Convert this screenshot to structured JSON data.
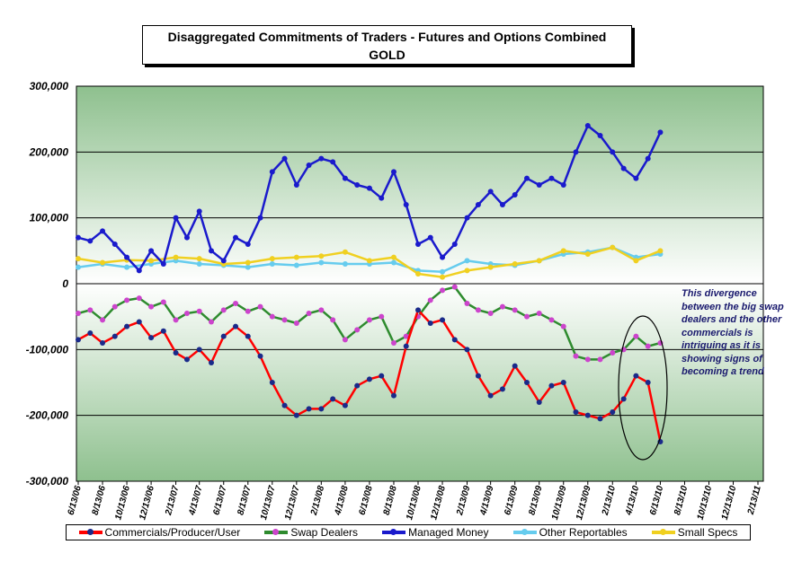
{
  "title_line1": "Disaggregated Commitments of Traders - Futures and Options Combined",
  "title_line2": "GOLD",
  "annotation": "This divergence between the big swap dealers and the other commercials is intriguing as it is showing signs of becoming a trend",
  "chart_data": {
    "type": "line",
    "ylim": [
      -300000,
      300000
    ],
    "y_ticks": [
      "300,000",
      "200,000",
      "100,000",
      "0",
      "-100,000",
      "-200,000",
      "-300,000"
    ],
    "x_tick_labels": [
      "6/13/06",
      "8/13/06",
      "10/13/06",
      "12/13/06",
      "2/13/07",
      "4/13/07",
      "6/13/07",
      "8/13/07",
      "10/13/07",
      "12/13/07",
      "2/13/08",
      "4/13/08",
      "6/13/08",
      "8/13/08",
      "10/13/08",
      "12/13/08",
      "2/13/09",
      "4/13/09",
      "6/13/09",
      "8/13/09",
      "10/13/09",
      "12/13/09",
      "2/13/10",
      "4/13/10",
      "6/13/10",
      "8/13/10",
      "10/13/10",
      "12/13/10",
      "2/13/11"
    ],
    "grid": true,
    "legend_position": "bottom",
    "colors": {
      "Commercials/Producer/User": {
        "line": "#ff0000",
        "marker": "#1a2a8a"
      },
      "Swap Dealers": {
        "line": "#2e8b2e",
        "marker": "#cc44cc"
      },
      "Managed Money": {
        "line": "#1a1acc",
        "marker": "#1a1acc"
      },
      "Other Reportables": {
        "line": "#66ccee",
        "marker": "#66ccee"
      },
      "Small Specs": {
        "line": "#f0d020",
        "marker": "#f0d020"
      }
    },
    "series": [
      {
        "name": "Commercials/Producer/User",
        "x": [
          "6/13/06",
          "7/13/06",
          "8/13/06",
          "9/13/06",
          "10/13/06",
          "11/13/06",
          "12/13/06",
          "1/13/07",
          "2/13/07",
          "3/13/07",
          "4/13/07",
          "5/13/07",
          "6/13/07",
          "7/13/07",
          "8/13/07",
          "9/13/07",
          "10/13/07",
          "11/13/07",
          "12/13/07",
          "1/13/08",
          "2/13/08",
          "3/13/08",
          "4/13/08",
          "5/13/08",
          "6/13/08",
          "7/13/08",
          "8/13/08",
          "9/13/08",
          "10/13/08",
          "11/13/08",
          "12/13/08",
          "1/13/09",
          "2/13/09",
          "3/13/09",
          "4/13/09",
          "5/13/09",
          "6/13/09",
          "7/13/09",
          "8/13/09",
          "9/13/09",
          "10/13/09",
          "11/13/09",
          "12/13/09",
          "1/13/10",
          "2/13/10",
          "3/13/10",
          "4/13/10",
          "5/13/10",
          "6/13/10"
        ],
        "y": [
          -85000,
          -75000,
          -90000,
          -80000,
          -65000,
          -58000,
          -82000,
          -72000,
          -105000,
          -115000,
          -100000,
          -120000,
          -80000,
          -65000,
          -80000,
          -110000,
          -150000,
          -185000,
          -200000,
          -190000,
          -190000,
          -175000,
          -185000,
          -155000,
          -145000,
          -140000,
          -170000,
          -95000,
          -40000,
          -60000,
          -55000,
          -85000,
          -100000,
          -140000,
          -170000,
          -160000,
          -125000,
          -150000,
          -180000,
          -155000,
          -150000,
          -195000,
          -200000,
          -205000,
          -195000,
          -175000,
          -140000,
          -150000,
          -240000
        ]
      },
      {
        "name": "Swap Dealers",
        "x": [
          "6/13/06",
          "7/13/06",
          "8/13/06",
          "9/13/06",
          "10/13/06",
          "11/13/06",
          "12/13/06",
          "1/13/07",
          "2/13/07",
          "3/13/07",
          "4/13/07",
          "5/13/07",
          "6/13/07",
          "7/13/07",
          "8/13/07",
          "9/13/07",
          "10/13/07",
          "11/13/07",
          "12/13/07",
          "1/13/08",
          "2/13/08",
          "3/13/08",
          "4/13/08",
          "5/13/08",
          "6/13/08",
          "7/13/08",
          "8/13/08",
          "9/13/08",
          "10/13/08",
          "11/13/08",
          "12/13/08",
          "1/13/09",
          "2/13/09",
          "3/13/09",
          "4/13/09",
          "5/13/09",
          "6/13/09",
          "7/13/09",
          "8/13/09",
          "9/13/09",
          "10/13/09",
          "11/13/09",
          "12/13/09",
          "1/13/10",
          "2/13/10",
          "3/13/10",
          "4/13/10",
          "5/13/10",
          "6/13/10"
        ],
        "y": [
          -45000,
          -40000,
          -55000,
          -35000,
          -25000,
          -22000,
          -35000,
          -28000,
          -55000,
          -45000,
          -42000,
          -58000,
          -40000,
          -30000,
          -42000,
          -35000,
          -50000,
          -55000,
          -60000,
          -45000,
          -40000,
          -55000,
          -85000,
          -70000,
          -55000,
          -50000,
          -90000,
          -80000,
          -50000,
          -25000,
          -10000,
          -5000,
          -30000,
          -40000,
          -45000,
          -35000,
          -40000,
          -50000,
          -45000,
          -55000,
          -65000,
          -110000,
          -115000,
          -115000,
          -105000,
          -100000,
          -80000,
          -95000,
          -90000
        ]
      },
      {
        "name": "Managed Money",
        "x": [
          "6/13/06",
          "7/13/06",
          "8/13/06",
          "9/13/06",
          "10/13/06",
          "11/13/06",
          "12/13/06",
          "1/13/07",
          "2/13/07",
          "3/13/07",
          "4/13/07",
          "5/13/07",
          "6/13/07",
          "7/13/07",
          "8/13/07",
          "9/13/07",
          "10/13/07",
          "11/13/07",
          "12/13/07",
          "1/13/08",
          "2/13/08",
          "3/13/08",
          "4/13/08",
          "5/13/08",
          "6/13/08",
          "7/13/08",
          "8/13/08",
          "9/13/08",
          "10/13/08",
          "11/13/08",
          "12/13/08",
          "1/13/09",
          "2/13/09",
          "3/13/09",
          "4/13/09",
          "5/13/09",
          "6/13/09",
          "7/13/09",
          "8/13/09",
          "9/13/09",
          "10/13/09",
          "11/13/09",
          "12/13/09",
          "1/13/10",
          "2/13/10",
          "3/13/10",
          "4/13/10",
          "5/13/10",
          "6/13/10"
        ],
        "y": [
          70000,
          65000,
          80000,
          60000,
          40000,
          20000,
          50000,
          30000,
          100000,
          70000,
          110000,
          50000,
          35000,
          70000,
          60000,
          100000,
          170000,
          190000,
          150000,
          180000,
          190000,
          185000,
          160000,
          150000,
          145000,
          130000,
          170000,
          120000,
          60000,
          70000,
          40000,
          60000,
          100000,
          120000,
          140000,
          120000,
          135000,
          160000,
          150000,
          160000,
          150000,
          200000,
          240000,
          225000,
          200000,
          175000,
          160000,
          190000,
          230000
        ]
      },
      {
        "name": "Other Reportables",
        "x": [
          "6/13/06",
          "8/13/06",
          "10/13/06",
          "12/13/06",
          "2/13/07",
          "4/13/07",
          "6/13/07",
          "8/13/07",
          "10/13/07",
          "12/13/07",
          "2/13/08",
          "4/13/08",
          "6/13/08",
          "8/13/08",
          "10/13/08",
          "12/13/08",
          "2/13/09",
          "4/13/09",
          "6/13/09",
          "8/13/09",
          "10/13/09",
          "12/13/09",
          "2/13/10",
          "4/13/10",
          "6/13/10"
        ],
        "y": [
          25000,
          30000,
          25000,
          30000,
          35000,
          30000,
          28000,
          25000,
          30000,
          28000,
          32000,
          30000,
          30000,
          32000,
          20000,
          18000,
          35000,
          30000,
          28000,
          35000,
          45000,
          48000,
          55000,
          40000,
          45000
        ]
      },
      {
        "name": "Small Specs",
        "x": [
          "6/13/06",
          "8/13/06",
          "10/13/06",
          "12/13/06",
          "2/13/07",
          "4/13/07",
          "6/13/07",
          "8/13/07",
          "10/13/07",
          "12/13/07",
          "2/13/08",
          "4/13/08",
          "6/13/08",
          "8/13/08",
          "10/13/08",
          "12/13/08",
          "2/13/09",
          "4/13/09",
          "6/13/09",
          "8/13/09",
          "10/13/09",
          "12/13/09",
          "2/13/10",
          "4/13/10",
          "6/13/10"
        ],
        "y": [
          38000,
          32000,
          36000,
          35000,
          40000,
          38000,
          30000,
          32000,
          38000,
          40000,
          42000,
          48000,
          35000,
          40000,
          15000,
          10000,
          20000,
          25000,
          30000,
          35000,
          50000,
          45000,
          55000,
          35000,
          50000
        ]
      }
    ]
  }
}
